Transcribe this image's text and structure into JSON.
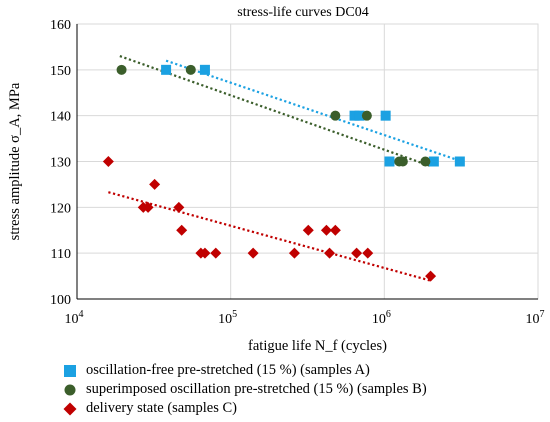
{
  "chart_data": {
    "type": "scatter",
    "title": "stress-life curves DC04",
    "xlabel": "fatigue life N_f (cycles)",
    "ylabel": "stress amplitude σ_A, MPa",
    "x_scale": "log",
    "xlim": [
      10000,
      10000000
    ],
    "ylim": [
      100,
      160
    ],
    "x_ticks": [
      {
        "base": "10",
        "exp": "4"
      },
      {
        "base": "10",
        "exp": "5"
      },
      {
        "base": "10",
        "exp": "6"
      },
      {
        "base": "10",
        "exp": "7"
      }
    ],
    "y_ticks": [
      "100",
      "110",
      "120",
      "130",
      "140",
      "150",
      "160"
    ],
    "grid": true,
    "legend_position": "bottom",
    "series": [
      {
        "name": "oscillation-free pre-stretched (15 %) (samples A)",
        "marker": "square",
        "color": "#1ba1e2",
        "trendline": {
          "x": [
            38000,
            3200000
          ],
          "y": [
            152,
            130
          ]
        },
        "points": [
          {
            "x": 38000,
            "y": 150
          },
          {
            "x": 68000,
            "y": 150
          },
          {
            "x": 640000,
            "y": 140
          },
          {
            "x": 690000,
            "y": 140
          },
          {
            "x": 1020000,
            "y": 140
          },
          {
            "x": 1080000,
            "y": 130
          },
          {
            "x": 2100000,
            "y": 130
          },
          {
            "x": 3100000,
            "y": 130
          }
        ]
      },
      {
        "name": "superimposed oscillation pre-stretched (15 %) (samples B)",
        "marker": "circle",
        "color": "#3b5e2b",
        "trendline": {
          "x": [
            19000,
            2000000
          ],
          "y": [
            153,
            129
          ]
        },
        "points": [
          {
            "x": 19500,
            "y": 150
          },
          {
            "x": 55000,
            "y": 150
          },
          {
            "x": 480000,
            "y": 140
          },
          {
            "x": 770000,
            "y": 140
          },
          {
            "x": 1250000,
            "y": 130
          },
          {
            "x": 1320000,
            "y": 130
          },
          {
            "x": 1850000,
            "y": 130
          }
        ]
      },
      {
        "name": "delivery state (samples C)",
        "marker": "diamond",
        "color": "#c00000",
        "trendline": {
          "x": [
            16000,
            2000000
          ],
          "y": [
            123.3,
            104
          ]
        },
        "points": [
          {
            "x": 16000,
            "y": 130
          },
          {
            "x": 27000,
            "y": 120
          },
          {
            "x": 29000,
            "y": 120
          },
          {
            "x": 32000,
            "y": 125
          },
          {
            "x": 46000,
            "y": 120
          },
          {
            "x": 48000,
            "y": 115
          },
          {
            "x": 64000,
            "y": 110
          },
          {
            "x": 68000,
            "y": 110
          },
          {
            "x": 80000,
            "y": 110
          },
          {
            "x": 140000,
            "y": 110
          },
          {
            "x": 260000,
            "y": 110
          },
          {
            "x": 320000,
            "y": 115
          },
          {
            "x": 420000,
            "y": 115
          },
          {
            "x": 440000,
            "y": 110
          },
          {
            "x": 480000,
            "y": 115
          },
          {
            "x": 660000,
            "y": 110
          },
          {
            "x": 780000,
            "y": 110
          },
          {
            "x": 2000000,
            "y": 105
          }
        ]
      }
    ]
  }
}
